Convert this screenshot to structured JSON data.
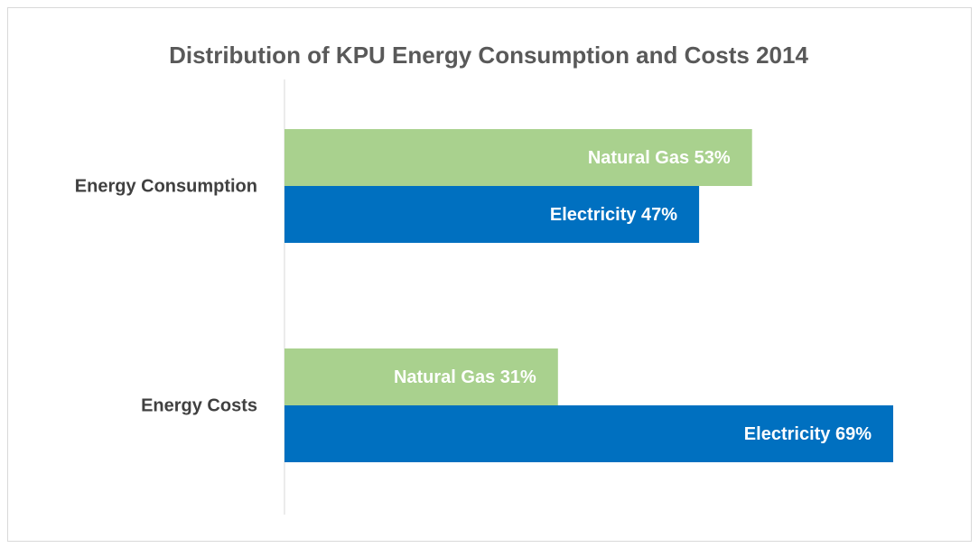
{
  "chart_data": {
    "type": "hbar",
    "title": "Distribution of KPU Energy Consumption and Costs 2014",
    "categories": [
      "Energy Consumption",
      "Energy Costs"
    ],
    "series": [
      {
        "name": "Natural Gas",
        "color": "#a9d18e",
        "values": [
          53,
          31
        ],
        "value_labels": [
          "Natural Gas 53%",
          "Natural Gas 31%"
        ]
      },
      {
        "name": "Electricity",
        "color": "#0070c0",
        "values": [
          47,
          69
        ],
        "value_labels": [
          "Electricity 47%",
          "Electricity 69%"
        ]
      }
    ]
  }
}
